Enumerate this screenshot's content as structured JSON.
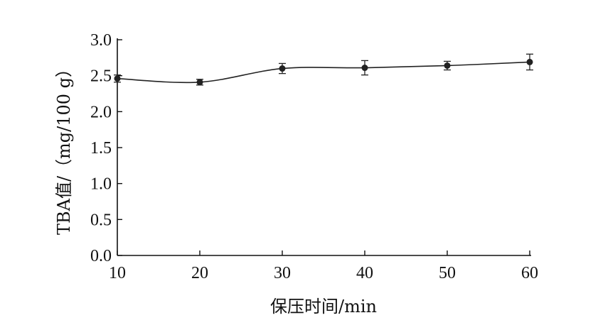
{
  "chart_data": {
    "type": "line",
    "title": "",
    "xlabel": "保压时间/min",
    "ylabel": "TBA值/（mg/100 g）",
    "xlim": [
      10,
      60
    ],
    "ylim": [
      0.0,
      3.0
    ],
    "x_ticks": [
      "10",
      "20",
      "30",
      "40",
      "50",
      "60"
    ],
    "y_ticks": [
      "0.0",
      "0.5",
      "1.0",
      "1.5",
      "2.0",
      "2.5",
      "3.0"
    ],
    "grid": false,
    "legend": "none",
    "series": [
      {
        "x": [
          10,
          20,
          30,
          40,
          50,
          60
        ],
        "y": [
          2.46,
          2.41,
          2.6,
          2.61,
          2.64,
          2.69
        ],
        "error": [
          0.05,
          0.04,
          0.07,
          0.1,
          0.06,
          0.11
        ],
        "color": "#222222"
      }
    ]
  }
}
